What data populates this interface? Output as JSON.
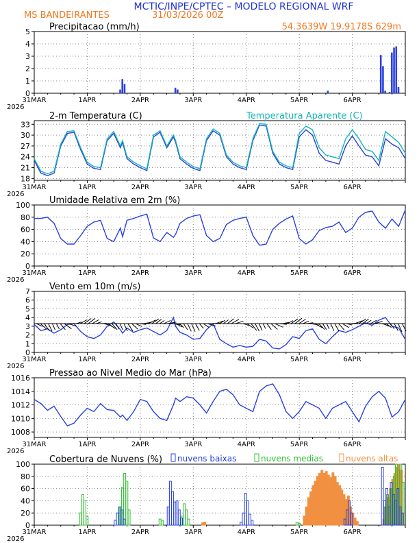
{
  "header": {
    "title": "MCTIC/INPE/CPTEC – MODELO REGIONAL WRF",
    "location": "MS BANDEIRANTES",
    "run": "31/03/2026 00Z",
    "coords": "54.3639W 19.9178S 629m"
  },
  "time_axis": {
    "labels": [
      "31MAR",
      "1APR",
      "2APR",
      "3APR",
      "4APR",
      "5APR",
      "6APR"
    ],
    "year": "2026",
    "hours_total": 168
  },
  "colors": {
    "blue": "#2840e0",
    "cyan": "#14b4b4",
    "green": "#30c030",
    "orange": "#f09040",
    "title": "#2030d0",
    "header_orange": "#f07820"
  },
  "chart_data": [
    {
      "type": "bar",
      "id": "precip",
      "title": "Precipitacao (mm/h)",
      "ylim": [
        0,
        5
      ],
      "yticks": [
        0,
        1,
        2,
        3,
        4,
        5
      ],
      "x_hours": [
        39,
        40,
        41,
        64,
        65,
        102,
        133,
        157,
        158,
        159,
        161,
        162,
        163,
        164,
        165
      ],
      "values": [
        0.3,
        1.15,
        0.75,
        0.45,
        0.3,
        0.05,
        0.2,
        3.1,
        2.2,
        0.2,
        0.1,
        3.3,
        3.7,
        3.8,
        0.5
      ]
    },
    {
      "type": "line",
      "id": "temp",
      "title": "2-m Temperatura (C)",
      "legend": "Temperatura Aparente (C)",
      "ylim": [
        17.5,
        34
      ],
      "yticks": [
        18,
        21,
        24,
        27,
        30,
        33
      ],
      "x": [
        0,
        3,
        6,
        9,
        12,
        15,
        18,
        21,
        24,
        27,
        30,
        33,
        36,
        39,
        40,
        42,
        45,
        48,
        51,
        54,
        57,
        60,
        63,
        64,
        66,
        69,
        72,
        75,
        78,
        81,
        84,
        87,
        90,
        93,
        96,
        99,
        102,
        105,
        108,
        111,
        114,
        117,
        120,
        123,
        126,
        129,
        132,
        135,
        138,
        141,
        144,
        147,
        150,
        153,
        156,
        159,
        162,
        165,
        168
      ],
      "series": [
        {
          "name": "Temperatura",
          "color": "blue",
          "values": [
            23,
            19.5,
            18.8,
            19.5,
            27,
            30.5,
            30.8,
            26,
            22,
            20.8,
            20.5,
            28.5,
            30.5,
            26.5,
            28,
            23.5,
            22,
            21,
            20.2,
            29.5,
            30.8,
            26.5,
            29.5,
            28,
            23.5,
            22,
            20.8,
            20.2,
            28.5,
            31.2,
            30,
            24,
            22,
            21,
            20.5,
            28.5,
            32.8,
            32.5,
            25,
            22,
            21,
            20.5,
            29.5,
            31.5,
            30,
            25,
            23,
            22.5,
            22,
            27,
            29.8,
            27,
            24.5,
            24,
            21.5,
            29,
            27.5,
            26.5,
            23.5
          ]
        },
        {
          "name": "Temperatura Aparente",
          "color": "cyan",
          "values": [
            23.5,
            20,
            19.3,
            20,
            27.5,
            31,
            31.2,
            26.5,
            22.5,
            21.3,
            21,
            29,
            31,
            27,
            28.5,
            24,
            22.5,
            21.5,
            20.7,
            30,
            31.2,
            27,
            30,
            28.5,
            24,
            22.5,
            21.3,
            20.7,
            29,
            31.7,
            30.5,
            24.5,
            22.5,
            21.5,
            21,
            29,
            33.2,
            33,
            25.5,
            22.5,
            21.5,
            21,
            30.5,
            32.5,
            31.5,
            26.5,
            24.5,
            24,
            23.5,
            29,
            31.5,
            29,
            26,
            25.5,
            23,
            31,
            29.5,
            28,
            25
          ]
        }
      ]
    },
    {
      "type": "line",
      "id": "rh",
      "title": "Umidade Relativa em 2m (%)",
      "ylim": [
        0,
        100
      ],
      "yticks": [
        0,
        20,
        40,
        60,
        80,
        100
      ],
      "x": [
        0,
        3,
        6,
        9,
        12,
        15,
        18,
        21,
        24,
        27,
        30,
        33,
        36,
        39,
        40,
        42,
        45,
        48,
        51,
        54,
        57,
        60,
        63,
        64,
        66,
        69,
        72,
        75,
        78,
        81,
        84,
        87,
        90,
        93,
        96,
        99,
        102,
        105,
        108,
        111,
        114,
        117,
        120,
        123,
        126,
        129,
        132,
        135,
        138,
        141,
        144,
        147,
        150,
        153,
        156,
        159,
        162,
        165,
        168
      ],
      "values": [
        78,
        78,
        80,
        70,
        45,
        36,
        36,
        50,
        65,
        72,
        75,
        45,
        40,
        62,
        48,
        75,
        78,
        82,
        85,
        46,
        40,
        55,
        47,
        52,
        70,
        78,
        82,
        84,
        50,
        40,
        45,
        68,
        75,
        78,
        80,
        50,
        34,
        36,
        60,
        70,
        77,
        82,
        45,
        36,
        43,
        58,
        63,
        65,
        72,
        55,
        62,
        80,
        88,
        90,
        72,
        62,
        77,
        65,
        92
      ]
    },
    {
      "type": "line",
      "id": "wind",
      "title": "Vento em 10m (m/s)",
      "ylim": [
        0,
        7
      ],
      "yticks": [
        0,
        1,
        2,
        3,
        4,
        5,
        6,
        7
      ],
      "x": [
        0,
        3,
        6,
        9,
        12,
        15,
        18,
        21,
        24,
        27,
        30,
        33,
        36,
        39,
        40,
        42,
        45,
        48,
        51,
        54,
        57,
        60,
        63,
        64,
        66,
        69,
        72,
        75,
        78,
        81,
        84,
        87,
        90,
        93,
        96,
        99,
        102,
        105,
        108,
        111,
        114,
        117,
        120,
        123,
        126,
        129,
        132,
        135,
        138,
        141,
        144,
        147,
        150,
        153,
        156,
        159,
        162,
        165,
        168
      ],
      "values": [
        3.2,
        2.5,
        2.7,
        2.2,
        2.6,
        3.2,
        3.3,
        2.4,
        1.8,
        1.6,
        2.0,
        3.0,
        3.5,
        2.6,
        2.2,
        2.8,
        2.3,
        2.6,
        2.8,
        2.4,
        2.0,
        2.5,
        4.0,
        3.0,
        2.3,
        2.0,
        1.5,
        1.6,
        2.6,
        3.3,
        1.5,
        1.0,
        0.6,
        0.8,
        0.6,
        0.7,
        1.5,
        1.3,
        0.5,
        0.4,
        0.9,
        1.8,
        1.6,
        2.5,
        2.7,
        1.5,
        1.0,
        1.8,
        2.5,
        2.3,
        2.6,
        3.0,
        3.4,
        3.1,
        3.7,
        4.0,
        3.0,
        2.8,
        1.5
      ]
    },
    {
      "type": "line",
      "id": "pres",
      "title": "Pressao ao Nivel Medio do Mar (hPa)",
      "ylim": [
        1007.2,
        1016
      ],
      "yticks": [
        1008,
        1010,
        1012,
        1014,
        1016
      ],
      "x": [
        0,
        3,
        6,
        9,
        12,
        15,
        18,
        21,
        24,
        27,
        30,
        33,
        36,
        39,
        40,
        42,
        45,
        48,
        51,
        54,
        57,
        60,
        63,
        64,
        66,
        69,
        72,
        75,
        78,
        81,
        84,
        87,
        90,
        93,
        96,
        99,
        102,
        105,
        108,
        111,
        114,
        117,
        120,
        123,
        126,
        129,
        132,
        135,
        138,
        141,
        144,
        147,
        150,
        153,
        156,
        159,
        162,
        165,
        168
      ],
      "values": [
        1012.8,
        1012.2,
        1011.2,
        1011.8,
        1010.3,
        1008.9,
        1009.3,
        1010.5,
        1011.5,
        1011.0,
        1012.2,
        1011.3,
        1011.2,
        1010.2,
        1010.5,
        1009.7,
        1011.0,
        1012.8,
        1012.5,
        1011.0,
        1010.0,
        1009.7,
        1012.0,
        1013.0,
        1012.5,
        1013.2,
        1013.0,
        1012.0,
        1010.8,
        1012.5,
        1014.0,
        1014.3,
        1013.5,
        1012.0,
        1011.5,
        1011.0,
        1014.0,
        1014.8,
        1015.1,
        1013.5,
        1011.0,
        1010.0,
        1011.0,
        1012.5,
        1012.0,
        1011.5,
        1010.0,
        1011.5,
        1012.0,
        1012.5,
        1011.0,
        1009.5,
        1011.8,
        1013.2,
        1014.0,
        1013.0,
        1010.2,
        1011.0,
        1012.8
      ]
    },
    {
      "type": "bar",
      "id": "cloud",
      "title": "Cobertura de Nuvens (%)",
      "ylim": [
        0,
        100
      ],
      "yticks": [
        0,
        20,
        40,
        60,
        80,
        100
      ],
      "legend": [
        "nuvens baixas",
        "nuvens medias",
        "nuvens altas"
      ],
      "series": [
        {
          "name": "nuvens baixas",
          "color": "blue",
          "x_hours": [
            37,
            38,
            39,
            40,
            41,
            61,
            62,
            63,
            64,
            65,
            66,
            67,
            94,
            95,
            96,
            97,
            98,
            99,
            141,
            142,
            143,
            144,
            158,
            159,
            160,
            161,
            162,
            163,
            164,
            165,
            166,
            167
          ],
          "values": [
            8,
            20,
            30,
            25,
            10,
            30,
            72,
            55,
            38,
            40,
            25,
            12,
            5,
            20,
            52,
            40,
            18,
            8,
            10,
            25,
            40,
            20,
            95,
            40,
            60,
            30,
            70,
            50,
            40,
            60,
            30,
            20
          ]
        },
        {
          "name": "nuvens medias",
          "color": "green",
          "x_hours": [
            21,
            22,
            23,
            24,
            39,
            40,
            41,
            42,
            43,
            57,
            58,
            67,
            68,
            69,
            70,
            119,
            120,
            159,
            160,
            161,
            162,
            163,
            164,
            165,
            166,
            167
          ],
          "values": [
            20,
            50,
            40,
            15,
            30,
            62,
            85,
            72,
            25,
            10,
            8,
            15,
            35,
            25,
            10,
            5,
            3,
            30,
            50,
            40,
            60,
            80,
            100,
            90,
            100,
            70
          ]
        },
        {
          "name": "nuvens altas",
          "color": "orange",
          "x_hours": [
            76,
            77,
            122,
            123,
            124,
            125,
            126,
            127,
            128,
            129,
            130,
            131,
            132,
            133,
            134,
            135,
            136,
            137,
            138,
            139,
            140,
            141,
            142,
            143,
            144,
            145,
            146,
            158,
            159,
            160,
            161,
            162,
            163,
            164,
            165,
            166
          ],
          "values": [
            4,
            5,
            15,
            30,
            45,
            55,
            65,
            72,
            80,
            85,
            90,
            85,
            88,
            82,
            78,
            86,
            80,
            70,
            65,
            58,
            50,
            42,
            48,
            30,
            20,
            12,
            6,
            10,
            30,
            45,
            60,
            75,
            85,
            95,
            100,
            90
          ]
        }
      ]
    }
  ]
}
